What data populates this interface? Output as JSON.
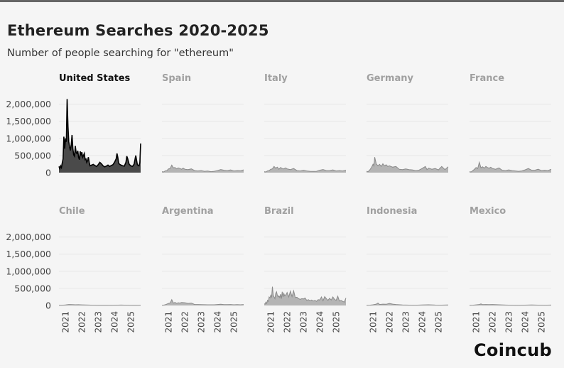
{
  "title": "Ethereum Searches 2020-2025",
  "subtitle": "Number of people searching for \"ethereum\"",
  "brand": "Coincub",
  "colors": {
    "highlight_fill": "#4a4a4a",
    "highlight_line": "#000000",
    "muted_fill": "#b4b4b4",
    "muted_line": "#8a8a8a",
    "muted_title": "#a0a0a0",
    "gridline": "#e6e6e6"
  },
  "chart_data": {
    "type": "area",
    "layout": "small-multiples",
    "grid": true,
    "ylim": [
      0,
      2200000
    ],
    "yticks": [
      "2,000,000",
      "1,500,000",
      "1,000,000",
      "500,000",
      "0"
    ],
    "ytick_values": [
      2000000,
      1500000,
      1000000,
      500000,
      0
    ],
    "xticks": [
      "2021",
      "2022",
      "2023",
      "2024",
      "2025"
    ],
    "xlim": [
      2020.6,
      2025.6
    ],
    "highlight": "United States",
    "series": [
      {
        "name": "United States",
        "x": [
          2020.6,
          2020.65,
          2020.7,
          2020.75,
          2020.8,
          2020.85,
          2020.9,
          2020.95,
          2021.0,
          2021.05,
          2021.1,
          2021.15,
          2021.2,
          2021.25,
          2021.3,
          2021.35,
          2021.4,
          2021.45,
          2021.5,
          2021.55,
          2021.6,
          2021.65,
          2021.7,
          2021.75,
          2021.8,
          2021.85,
          2021.9,
          2021.95,
          2022.0,
          2022.05,
          2022.1,
          2022.15,
          2022.2,
          2022.25,
          2022.3,
          2022.35,
          2022.4,
          2022.45,
          2022.5,
          2022.6,
          2022.7,
          2022.8,
          2022.9,
          2023.0,
          2023.1,
          2023.2,
          2023.3,
          2023.4,
          2023.5,
          2023.6,
          2023.7,
          2023.8,
          2023.9,
          2024.0,
          2024.1,
          2024.15,
          2024.2,
          2024.25,
          2024.3,
          2024.4,
          2024.5,
          2024.6,
          2024.7,
          2024.75,
          2024.8,
          2024.9,
          2025.0,
          2025.1,
          2025.2,
          2025.3,
          2025.4,
          2025.5,
          2025.55,
          2025.6
        ],
        "values": [
          180000,
          120000,
          200000,
          150000,
          280000,
          400000,
          1050000,
          700000,
          1000000,
          900000,
          2150000,
          1350000,
          900000,
          750000,
          650000,
          820000,
          1100000,
          700000,
          520000,
          480000,
          780000,
          580000,
          560000,
          640000,
          450000,
          380000,
          620000,
          520000,
          600000,
          450000,
          500000,
          560000,
          380000,
          400000,
          300000,
          350000,
          450000,
          300000,
          200000,
          220000,
          240000,
          210000,
          180000,
          230000,
          300000,
          260000,
          200000,
          170000,
          190000,
          220000,
          180000,
          210000,
          230000,
          300000,
          400000,
          560000,
          450000,
          280000,
          250000,
          220000,
          200000,
          190000,
          300000,
          480000,
          420000,
          240000,
          200000,
          180000,
          250000,
          500000,
          230000,
          200000,
          300000,
          850000
        ]
      },
      {
        "name": "Spain",
        "x": [
          2020.6,
          2020.7,
          2020.8,
          2020.9,
          2021.0,
          2021.1,
          2021.2,
          2021.3,
          2021.4,
          2021.5,
          2021.6,
          2021.7,
          2021.8,
          2021.9,
          2022.0,
          2022.2,
          2022.4,
          2022.6,
          2022.8,
          2023.0,
          2023.2,
          2023.4,
          2023.6,
          2023.8,
          2024.0,
          2024.2,
          2024.4,
          2024.6,
          2024.8,
          2025.0,
          2025.2,
          2025.4,
          2025.6
        ],
        "values": [
          30000,
          20000,
          50000,
          60000,
          110000,
          120000,
          220000,
          140000,
          150000,
          110000,
          140000,
          120000,
          100000,
          130000,
          100000,
          90000,
          110000,
          60000,
          50000,
          60000,
          40000,
          45000,
          30000,
          40000,
          60000,
          90000,
          70000,
          60000,
          80000,
          50000,
          60000,
          55000,
          80000
        ]
      },
      {
        "name": "Italy",
        "x": [
          2020.6,
          2020.7,
          2020.8,
          2020.9,
          2021.0,
          2021.1,
          2021.2,
          2021.3,
          2021.4,
          2021.5,
          2021.6,
          2021.7,
          2021.8,
          2021.9,
          2022.0,
          2022.2,
          2022.4,
          2022.6,
          2022.8,
          2023.0,
          2023.2,
          2023.4,
          2023.6,
          2023.8,
          2024.0,
          2024.2,
          2024.4,
          2024.6,
          2024.8,
          2025.0,
          2025.2,
          2025.4,
          2025.6
        ],
        "values": [
          30000,
          20000,
          50000,
          60000,
          100000,
          110000,
          180000,
          130000,
          160000,
          100000,
          150000,
          120000,
          110000,
          140000,
          110000,
          90000,
          120000,
          60000,
          50000,
          70000,
          50000,
          40000,
          35000,
          40000,
          70000,
          90000,
          60000,
          60000,
          80000,
          50000,
          60000,
          50000,
          70000
        ]
      },
      {
        "name": "Germany",
        "x": [
          2020.6,
          2020.7,
          2020.8,
          2020.9,
          2021.0,
          2021.05,
          2021.1,
          2021.2,
          2021.3,
          2021.4,
          2021.5,
          2021.6,
          2021.7,
          2021.8,
          2021.9,
          2022.0,
          2022.2,
          2022.4,
          2022.6,
          2022.8,
          2023.0,
          2023.2,
          2023.4,
          2023.6,
          2023.8,
          2024.0,
          2024.2,
          2024.3,
          2024.4,
          2024.6,
          2024.8,
          2025.0,
          2025.2,
          2025.4,
          2025.6
        ],
        "values": [
          40000,
          30000,
          80000,
          150000,
          250000,
          200000,
          450000,
          250000,
          200000,
          240000,
          180000,
          260000,
          200000,
          230000,
          180000,
          200000,
          160000,
          180000,
          100000,
          90000,
          110000,
          90000,
          80000,
          60000,
          70000,
          120000,
          180000,
          90000,
          130000,
          100000,
          120000,
          80000,
          180000,
          90000,
          170000
        ]
      },
      {
        "name": "France",
        "x": [
          2020.6,
          2020.7,
          2020.8,
          2020.9,
          2021.0,
          2021.1,
          2021.2,
          2021.3,
          2021.4,
          2021.5,
          2021.6,
          2021.7,
          2021.8,
          2021.9,
          2022.0,
          2022.2,
          2022.4,
          2022.6,
          2022.8,
          2023.0,
          2023.2,
          2023.4,
          2023.6,
          2023.8,
          2024.0,
          2024.2,
          2024.4,
          2024.6,
          2024.8,
          2025.0,
          2025.2,
          2025.4,
          2025.6
        ],
        "values": [
          30000,
          20000,
          60000,
          100000,
          150000,
          120000,
          300000,
          140000,
          170000,
          130000,
          180000,
          150000,
          130000,
          160000,
          120000,
          100000,
          140000,
          70000,
          60000,
          80000,
          60000,
          50000,
          40000,
          50000,
          80000,
          120000,
          70000,
          70000,
          100000,
          60000,
          70000,
          60000,
          100000
        ]
      },
      {
        "name": "Chile",
        "x": [
          2020.6,
          2020.8,
          2021.0,
          2021.2,
          2021.4,
          2021.6,
          2021.8,
          2022.0,
          2022.4,
          2022.8,
          2023.2,
          2023.6,
          2024.0,
          2024.4,
          2024.8,
          2025.2,
          2025.6
        ],
        "values": [
          5000,
          8000,
          15000,
          30000,
          25000,
          20000,
          22000,
          18000,
          12000,
          8000,
          6000,
          5000,
          8000,
          12000,
          8000,
          6000,
          8000
        ]
      },
      {
        "name": "Argentina",
        "x": [
          2020.6,
          2020.7,
          2020.8,
          2020.9,
          2021.0,
          2021.1,
          2021.2,
          2021.3,
          2021.4,
          2021.5,
          2021.6,
          2021.7,
          2021.8,
          2022.0,
          2022.2,
          2022.4,
          2022.6,
          2022.8,
          2023.0,
          2023.4,
          2023.8,
          2024.0,
          2024.2,
          2024.4,
          2024.6,
          2024.8,
          2025.0,
          2025.2,
          2025.4,
          2025.6
        ],
        "values": [
          10000,
          10000,
          20000,
          40000,
          60000,
          70000,
          170000,
          70000,
          90000,
          60000,
          80000,
          70000,
          90000,
          80000,
          60000,
          70000,
          30000,
          30000,
          25000,
          20000,
          20000,
          30000,
          35000,
          25000,
          25000,
          30000,
          20000,
          25000,
          20000,
          30000
        ]
      },
      {
        "name": "Brazil",
        "x": [
          2020.6,
          2020.65,
          2020.7,
          2020.75,
          2020.8,
          2020.85,
          2020.9,
          2020.95,
          2021.0,
          2021.05,
          2021.1,
          2021.15,
          2021.2,
          2021.25,
          2021.3,
          2021.35,
          2021.4,
          2021.45,
          2021.5,
          2021.55,
          2021.6,
          2021.65,
          2021.7,
          2021.75,
          2021.8,
          2021.85,
          2021.9,
          2021.95,
          2022.0,
          2022.1,
          2022.2,
          2022.3,
          2022.4,
          2022.5,
          2022.6,
          2022.7,
          2022.8,
          2022.9,
          2023.0,
          2023.1,
          2023.2,
          2023.3,
          2023.4,
          2023.5,
          2023.6,
          2023.7,
          2023.8,
          2023.9,
          2024.0,
          2024.1,
          2024.2,
          2024.3,
          2024.4,
          2024.5,
          2024.6,
          2024.7,
          2024.8,
          2024.9,
          2025.0,
          2025.1,
          2025.2,
          2025.3,
          2025.4,
          2025.5,
          2025.6
        ],
        "values": [
          50000,
          40000,
          100000,
          60000,
          150000,
          120000,
          250000,
          220000,
          300000,
          250000,
          550000,
          300000,
          250000,
          200000,
          350000,
          400000,
          300000,
          250000,
          280000,
          230000,
          330000,
          200000,
          400000,
          250000,
          350000,
          280000,
          300000,
          330000,
          380000,
          250000,
          420000,
          260000,
          430000,
          230000,
          240000,
          200000,
          180000,
          200000,
          190000,
          220000,
          150000,
          170000,
          140000,
          160000,
          130000,
          150000,
          120000,
          170000,
          160000,
          250000,
          140000,
          260000,
          200000,
          150000,
          210000,
          160000,
          250000,
          180000,
          150000,
          270000,
          130000,
          150000,
          120000,
          100000,
          220000
        ]
      },
      {
        "name": "Indonesia",
        "x": [
          2020.6,
          2020.8,
          2021.0,
          2021.2,
          2021.3,
          2021.4,
          2021.6,
          2021.8,
          2022.0,
          2022.2,
          2022.4,
          2022.8,
          2023.2,
          2023.6,
          2024.0,
          2024.4,
          2024.8,
          2025.2,
          2025.6
        ],
        "values": [
          5000,
          8000,
          20000,
          40000,
          70000,
          30000,
          40000,
          35000,
          60000,
          40000,
          30000,
          15000,
          10000,
          8000,
          15000,
          20000,
          12000,
          10000,
          15000
        ]
      },
      {
        "name": "Mexico",
        "x": [
          2020.6,
          2020.8,
          2021.0,
          2021.2,
          2021.3,
          2021.4,
          2021.6,
          2021.8,
          2022.0,
          2022.4,
          2022.8,
          2023.2,
          2023.6,
          2024.0,
          2024.4,
          2024.8,
          2025.2,
          2025.6
        ],
        "values": [
          5000,
          8000,
          18000,
          30000,
          45000,
          25000,
          30000,
          28000,
          30000,
          20000,
          12000,
          8000,
          6000,
          10000,
          15000,
          10000,
          8000,
          12000
        ]
      }
    ]
  }
}
